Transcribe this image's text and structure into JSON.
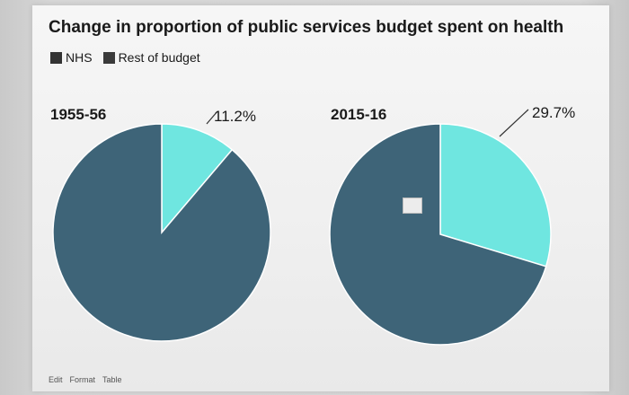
{
  "chart_data": {
    "type": "pie",
    "title": "Change in proportion of public services budget spent on health",
    "legend": [
      {
        "name": "NHS",
        "color": "#333333"
      },
      {
        "name": "Rest of budget",
        "color": "#3a3a3a"
      }
    ],
    "legend_placement": "top-left",
    "pies": [
      {
        "label": "1955-56",
        "slices": [
          {
            "name": "NHS",
            "value": 11.2,
            "label": "11.2%",
            "color": "#6fe6e0"
          },
          {
            "name": "Rest of budget",
            "value": 88.8,
            "color": "#3e6478"
          }
        ]
      },
      {
        "label": "2015-16",
        "slices": [
          {
            "name": "NHS",
            "value": 29.7,
            "label": "29.7%",
            "color": "#6fe6e0"
          },
          {
            "name": "Rest of budget",
            "value": 70.3,
            "color": "#3e6478"
          }
        ]
      }
    ]
  },
  "footer": {
    "edit": "Edit",
    "format": "Format",
    "table": "Table"
  }
}
